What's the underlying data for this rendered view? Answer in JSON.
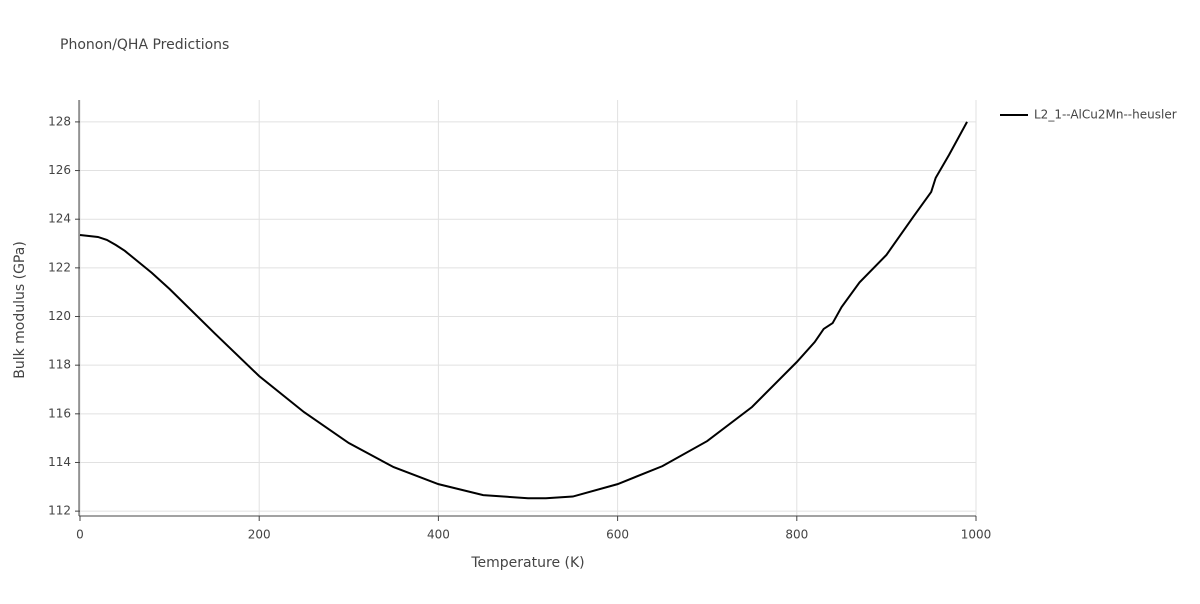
{
  "chart_data": {
    "type": "line",
    "title": "Phonon/QHA Predictions",
    "x_label": "Temperature (K)",
    "y_label": "Bulk modulus (GPa)",
    "xlim": [
      0,
      1000
    ],
    "xticks": [
      0,
      200,
      400,
      600,
      800,
      1000
    ],
    "ylim": [
      111.8,
      128.9
    ],
    "yticks": [
      112,
      114,
      116,
      118,
      120,
      122,
      124,
      126,
      128
    ],
    "grid": true,
    "legend": "top-right",
    "series": [
      {
        "name": "L2_1--AlCu2Mn--heusler",
        "color": "#000000",
        "x": [
          0,
          20,
          30,
          40,
          50,
          60,
          80,
          100,
          150,
          200,
          250,
          300,
          350,
          400,
          450,
          500,
          520,
          550,
          600,
          650,
          700,
          750,
          800,
          820,
          830,
          840,
          850,
          870,
          900,
          930,
          950,
          955,
          970,
          990
        ],
        "values": [
          123.35,
          123.27,
          123.15,
          122.94,
          122.7,
          122.4,
          121.8,
          121.13,
          119.32,
          117.55,
          116.07,
          114.8,
          113.81,
          113.11,
          112.66,
          112.53,
          112.53,
          112.6,
          113.11,
          113.85,
          114.88,
          116.28,
          118.13,
          118.95,
          119.49,
          119.73,
          120.39,
          121.4,
          122.53,
          124.1,
          125.12,
          125.7,
          126.65,
          128.0
        ]
      }
    ]
  }
}
